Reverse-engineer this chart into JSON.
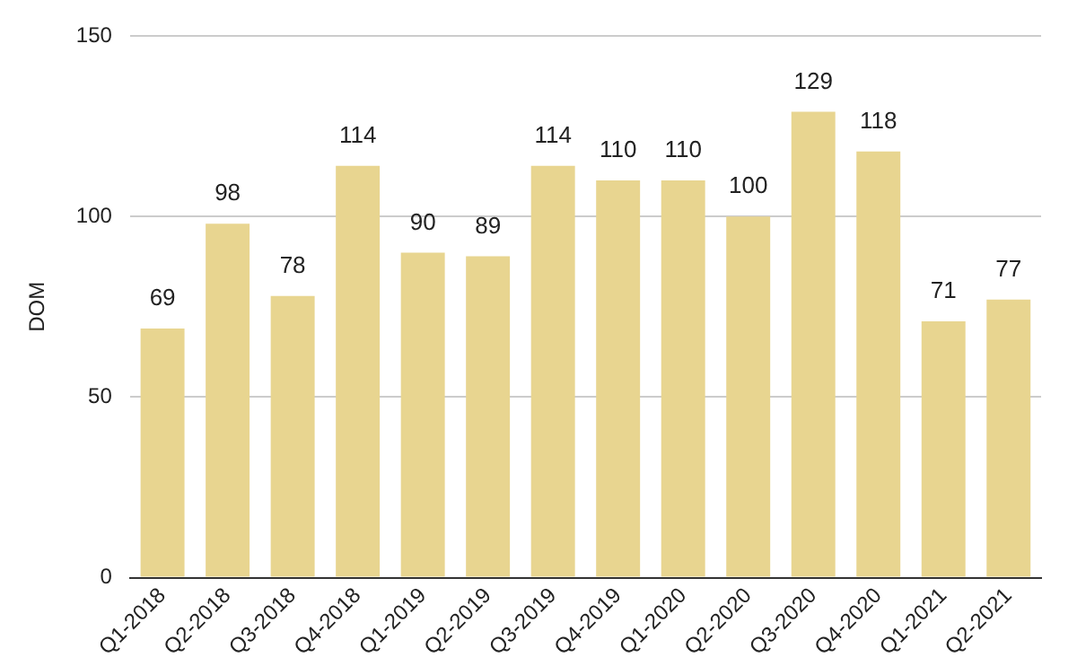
{
  "chart_data": {
    "type": "bar",
    "ylabel": "DOM",
    "categories": [
      "Q1-2018",
      "Q2-2018",
      "Q3-2018",
      "Q4-2018",
      "Q1-2019",
      "Q2-2019",
      "Q3-2019",
      "Q4-2019",
      "Q1-2020",
      "Q2-2020",
      "Q3-2020",
      "Q4-2020",
      "Q1-2021",
      "Q2-2021"
    ],
    "values": [
      69,
      98,
      78,
      114,
      90,
      89,
      114,
      110,
      110,
      100,
      129,
      118,
      71,
      77
    ],
    "color": "#e8d590",
    "ylim": [
      0,
      150
    ],
    "yticks": [
      0,
      50,
      100,
      150
    ],
    "grid": "y",
    "data_labels": true
  }
}
